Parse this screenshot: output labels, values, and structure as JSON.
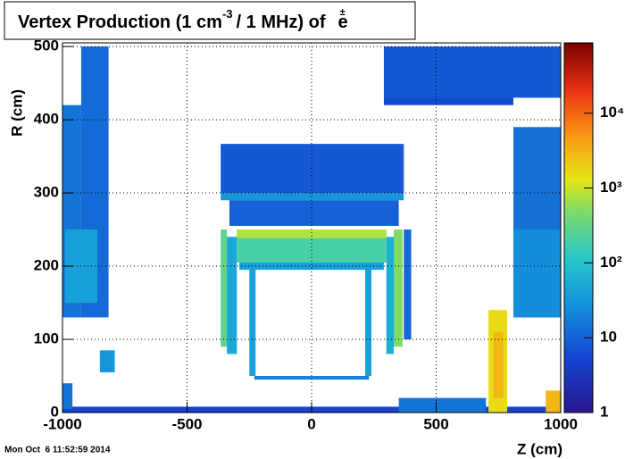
{
  "chart_data": {
    "type": "heatmap",
    "title": "Vertex Production (1 cm",
    "title_sup": "-3",
    "title_cont": "/ 1 MHz) of",
    "particle": "e",
    "particle_sup": "±",
    "x_label": "Z (cm)",
    "y_label": "R (cm)",
    "timestamp": "Mon Oct  6 11:52:59 2014",
    "xlim": [
      -1000,
      1000
    ],
    "ylim": [
      0,
      505
    ],
    "xticks": [
      -1000,
      -500,
      0,
      500,
      1000
    ],
    "yticks": [
      0,
      100,
      200,
      300,
      400,
      500
    ],
    "grid": true,
    "zlog": true,
    "zlim": [
      1,
      87000
    ],
    "zticks": [
      1,
      10,
      {
        "value": 100,
        "label": "10²"
      },
      {
        "value": 1000,
        "label": "10³"
      },
      {
        "value": 10000,
        "label": "10⁴"
      }
    ],
    "cells": [
      {
        "x": [
          -1000,
          -925
        ],
        "y": [
          130,
          420
        ],
        "value": 15
      },
      {
        "x": [
          -925,
          -815
        ],
        "y": [
          130,
          500
        ],
        "value": 12
      },
      {
        "x": [
          -990,
          -860
        ],
        "y": [
          150,
          250
        ],
        "value": 40
      },
      {
        "x": [
          810,
          1000
        ],
        "y": [
          130,
          390
        ],
        "value": 14
      },
      {
        "x": [
          810,
          1000
        ],
        "y": [
          130,
          250
        ],
        "value": 25
      },
      {
        "x": [
          290,
          1000
        ],
        "y": [
          430,
          500
        ],
        "value": 8
      },
      {
        "x": [
          290,
          810
        ],
        "y": [
          420,
          430
        ],
        "value": 6
      },
      {
        "x": [
          -365,
          370
        ],
        "y": [
          300,
          367
        ],
        "value": 8
      },
      {
        "x": [
          -365,
          370
        ],
        "y": [
          290,
          300
        ],
        "value": 30
      },
      {
        "x": [
          -330,
          350
        ],
        "y": [
          255,
          290
        ],
        "value": 10
      },
      {
        "x": [
          -300,
          300
        ],
        "y": [
          205,
          250
        ],
        "value": 200
      },
      {
        "x": [
          -300,
          300
        ],
        "y": [
          238,
          250
        ],
        "value": 800
      },
      {
        "x": [
          -290,
          290
        ],
        "y": [
          195,
          205
        ],
        "value": 40
      },
      {
        "x": [
          -365,
          -340
        ],
        "y": [
          90,
          250
        ],
        "value": 300
      },
      {
        "x": [
          330,
          365
        ],
        "y": [
          90,
          250
        ],
        "value": 500
      },
      {
        "x": [
          -340,
          -300
        ],
        "y": [
          80,
          240
        ],
        "value": 50
      },
      {
        "x": [
          300,
          330
        ],
        "y": [
          80,
          240
        ],
        "value": 60
      },
      {
        "x": [
          370,
          400
        ],
        "y": [
          100,
          250
        ],
        "value": 12
      },
      {
        "x": [
          -250,
          -225
        ],
        "y": [
          50,
          200
        ],
        "value": 40
      },
      {
        "x": [
          215,
          240
        ],
        "y": [
          50,
          200
        ],
        "value": 40
      },
      {
        "x": [
          -230,
          230
        ],
        "y": [
          45,
          50
        ],
        "value": 20
      },
      {
        "x": [
          -1000,
          1000
        ],
        "y": [
          0,
          8
        ],
        "value": 5
      },
      {
        "x": [
          -1000,
          -960
        ],
        "y": [
          5,
          40
        ],
        "value": 15
      },
      {
        "x": [
          -850,
          -790
        ],
        "y": [
          55,
          85
        ],
        "value": 30
      },
      {
        "x": [
          350,
          700
        ],
        "y": [
          0,
          20
        ],
        "value": 15
      },
      {
        "x": [
          710,
          785
        ],
        "y": [
          0,
          140
        ],
        "value": 1500
      },
      {
        "x": [
          730,
          770
        ],
        "y": [
          20,
          110
        ],
        "value": 3000
      },
      {
        "x": [
          940,
          1000
        ],
        "y": [
          0,
          30
        ],
        "value": 3000
      }
    ]
  }
}
